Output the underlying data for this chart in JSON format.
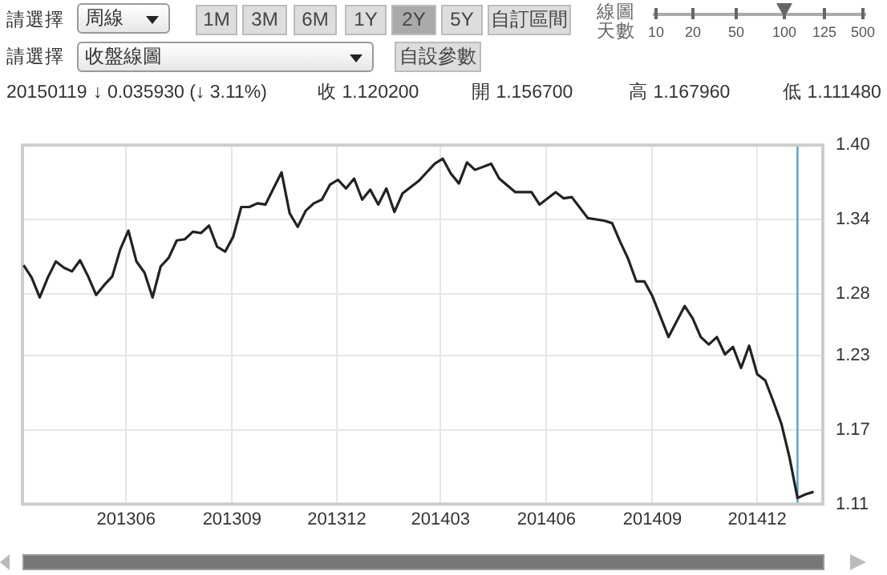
{
  "chart_data": {
    "type": "line",
    "annotations": [
      "請選擇",
      "周線",
      "1M",
      "3M",
      "6M",
      "1Y",
      "2Y",
      "5Y",
      "自訂區間",
      "線圖天數",
      "10",
      "20",
      "50",
      "100",
      "125",
      "500",
      "請選擇",
      "收盤線圖",
      "自設參數",
      "20150119",
      "↓ 0.035930 (↓ 3.11%)",
      "收 1.120200",
      "開 1.156700",
      "高 1.167960",
      "低 1.111480"
    ],
    "x": [
      "2013-03-04",
      "2013-03-11",
      "2013-03-18",
      "2013-03-25",
      "2013-04-01",
      "2013-04-08",
      "2013-04-15",
      "2013-04-22",
      "2013-04-29",
      "2013-05-06",
      "2013-05-13",
      "2013-05-20",
      "2013-05-27",
      "2013-06-03",
      "2013-06-10",
      "2013-06-17",
      "2013-06-24",
      "2013-07-01",
      "2013-07-08",
      "2013-07-15",
      "2013-07-22",
      "2013-07-29",
      "2013-08-05",
      "2013-08-12",
      "2013-08-19",
      "2013-08-26",
      "2013-09-02",
      "2013-09-09",
      "2013-09-16",
      "2013-09-23",
      "2013-09-30",
      "2013-10-07",
      "2013-10-14",
      "2013-10-21",
      "2013-10-28",
      "2013-11-04",
      "2013-11-11",
      "2013-11-18",
      "2013-11-25",
      "2013-12-02",
      "2013-12-09",
      "2013-12-16",
      "2013-12-23",
      "2013-12-30",
      "2014-01-06",
      "2014-01-13",
      "2014-01-20",
      "2014-01-27",
      "2014-02-03",
      "2014-02-10",
      "2014-02-17",
      "2014-02-24",
      "2014-03-03",
      "2014-03-10",
      "2014-03-17",
      "2014-03-24",
      "2014-03-31",
      "2014-04-14",
      "2014-04-21",
      "2014-05-05",
      "2014-05-19",
      "2014-05-26",
      "2014-06-09",
      "2014-06-16",
      "2014-06-23",
      "2014-07-07",
      "2014-07-21",
      "2014-07-28",
      "2014-08-04",
      "2014-08-11",
      "2014-08-18",
      "2014-08-25",
      "2014-09-01",
      "2014-09-15",
      "2014-09-29",
      "2014-10-06",
      "2014-10-13",
      "2014-10-20",
      "2014-10-27",
      "2014-11-03",
      "2014-11-10",
      "2014-11-17",
      "2014-11-24",
      "2014-12-01",
      "2014-12-08",
      "2014-12-15",
      "2014-12-22",
      "2014-12-29",
      "2015-01-05",
      "2015-01-12",
      "2015-01-19"
    ],
    "series": [
      {
        "color": "#222222",
        "values": [
          1.303,
          1.293,
          1.277,
          1.293,
          1.306,
          1.301,
          1.298,
          1.307,
          1.294,
          1.279,
          1.287,
          1.294,
          1.316,
          1.331,
          1.306,
          1.297,
          1.277,
          1.302,
          1.309,
          1.323,
          1.324,
          1.33,
          1.329,
          1.335,
          1.318,
          1.314,
          1.326,
          1.35,
          1.35,
          1.353,
          1.352,
          1.365,
          1.378,
          1.345,
          1.334,
          1.347,
          1.353,
          1.356,
          1.368,
          1.372,
          1.365,
          1.373,
          1.356,
          1.364,
          1.352,
          1.365,
          1.346,
          1.361,
          1.366,
          1.371,
          1.378,
          1.385,
          1.389,
          1.377,
          1.369,
          1.386,
          1.38,
          1.385,
          1.373,
          1.362,
          1.362,
          1.352,
          1.362,
          1.357,
          1.358,
          1.341,
          1.339,
          1.337,
          1.322,
          1.308,
          1.29,
          1.29,
          1.278,
          1.245,
          1.27,
          1.26,
          1.245,
          1.239,
          1.245,
          1.231,
          1.237,
          1.22,
          1.238,
          1.215,
          1.21,
          1.193,
          1.175,
          1.148,
          1.115,
          1.118,
          1.12
        ]
      }
    ],
    "xlim": [
      "2013-03-03",
      "2015-01-27"
    ],
    "xticks": [
      {
        "value": "2013-06-01",
        "label": "201306"
      },
      {
        "value": "2013-09-01",
        "label": "201309"
      },
      {
        "value": "2013-12-01",
        "label": "201312"
      },
      {
        "value": "2014-03-01",
        "label": "201403"
      },
      {
        "value": "2014-06-01",
        "label": "201406"
      },
      {
        "value": "2014-09-01",
        "label": "201409"
      },
      {
        "value": "2014-12-01",
        "label": "201412"
      }
    ],
    "ylim": [
      1.11,
      1.4
    ],
    "yticks": [
      1.11,
      1.17,
      1.23,
      1.28,
      1.34,
      {
        "value": 1.4,
        "label": "1.40"
      }
    ],
    "ref_lines": [
      {
        "axis": "x",
        "value": "2015-01-05",
        "color": "#4aa3d4"
      }
    ],
    "grid": true,
    "legend": false,
    "marker": "none",
    "line_style": "solid"
  }
}
